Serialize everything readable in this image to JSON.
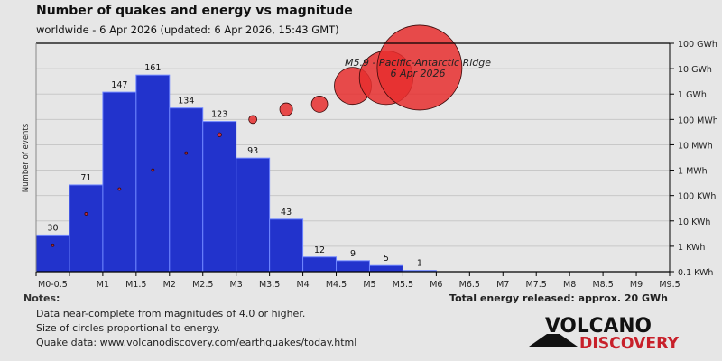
{
  "chart_data": {
    "type": "bar",
    "title": "Number of quakes and energy vs magnitude",
    "subtitle": "worldwide -  6 Apr 2026 (updated: 6 Apr 2026, 15:43 GMT)",
    "ylabel": "Number of events",
    "xlabel": "",
    "x_ticks": [
      "M0-0.5",
      "M1",
      "M1.5",
      "M2",
      "M2.5",
      "M3",
      "M3.5",
      "M4",
      "M4.5",
      "M5",
      "M5.5",
      "M6",
      "M6.5",
      "M7",
      "M7.5",
      "M8",
      "M8.5",
      "M9",
      "M9.5"
    ],
    "x_tick_values": [
      0.25,
      1,
      1.5,
      2,
      2.5,
      3,
      3.5,
      4,
      4.5,
      5,
      5.5,
      6,
      6.5,
      7,
      7.5,
      8,
      8.5,
      9,
      9.5
    ],
    "xlim": [
      0,
      9.5
    ],
    "bin_starts": [
      0,
      0.5,
      1,
      1.5,
      2,
      2.5,
      3,
      3.5,
      4,
      4.5,
      5,
      5.5
    ],
    "counts": [
      30,
      71,
      147,
      161,
      134,
      123,
      93,
      43,
      12,
      9,
      5,
      1
    ],
    "ylim_count": [
      0,
      187
    ],
    "energy_axis": {
      "scale": "log",
      "unit_values_mwh": [
        0.0001,
        0.001,
        0.01,
        0.1,
        1,
        10,
        100,
        1000,
        10000,
        100000
      ],
      "tick_labels": [
        "0.1 KWh",
        "1 KWh",
        "10 KWh",
        "100 KWh",
        "1 MWh",
        "10 MWh",
        "100 MWh",
        "1 GWh",
        "10 GWh",
        "100 GWh"
      ]
    },
    "energy_mwh": [
      0.0011,
      0.019,
      0.18,
      1.0,
      4.7,
      25,
      100,
      250,
      400,
      2100,
      4400,
      11000
    ],
    "annotation": {
      "line1": "M5.9 - Pacific-Antarctic Ridge",
      "line2": "6 Apr 2026"
    },
    "colors": {
      "bar": "#2233cc",
      "bar_last": "#4f6ff0",
      "circle": "#e62e2e",
      "grid": "#c8c8c8"
    }
  },
  "notes": {
    "heading": "Notes:",
    "lines": [
      "Data near-complete from magnitudes of 4.0 or higher.",
      "Size of circles proportional to energy.",
      "Quake data: www.volcanodiscovery.com/earthquakes/today.html"
    ]
  },
  "total_energy": "Total energy released: approx. 20 GWh",
  "logo": {
    "line1": "VOLCANO",
    "line2": "DISCOVERY"
  }
}
